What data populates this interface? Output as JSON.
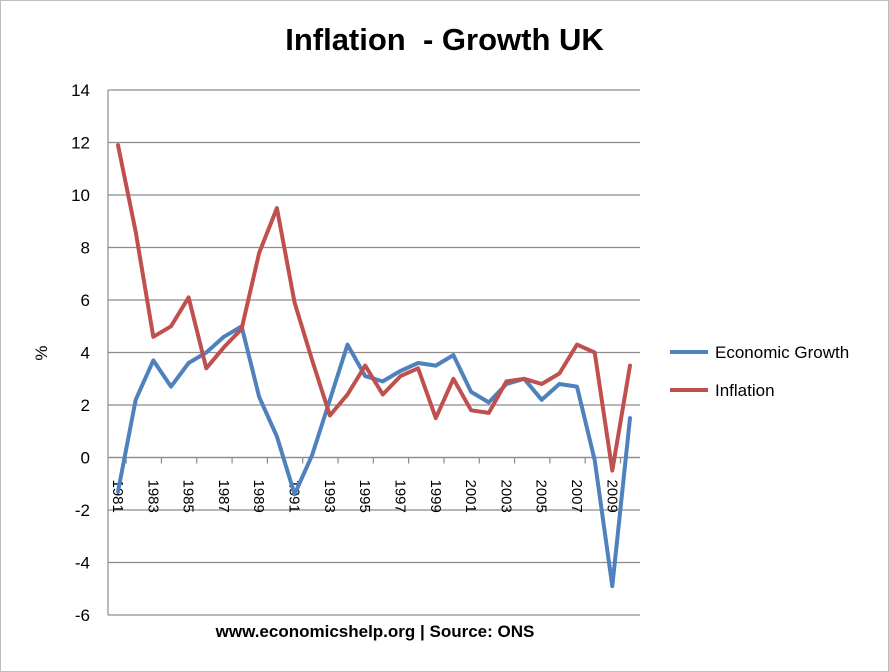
{
  "chart_data": {
    "type": "line",
    "title": "Inflation  - Growth UK",
    "source_note": "www.economicshelp.org | Source: ONS",
    "xlabel": "",
    "ylabel": "%",
    "ylim": [
      -6,
      14
    ],
    "yticks": [
      14,
      12,
      10,
      8,
      6,
      4,
      2,
      0,
      -2,
      -4,
      -6
    ],
    "x": [
      1981,
      1982,
      1983,
      1984,
      1985,
      1986,
      1987,
      1988,
      1989,
      1990,
      1991,
      1992,
      1993,
      1994,
      1995,
      1996,
      1997,
      1998,
      1999,
      2000,
      2001,
      2002,
      2003,
      2004,
      2005,
      2006,
      2007,
      2008,
      2009,
      2010
    ],
    "xtick_labels": [
      "1981",
      "1983",
      "1985",
      "1987",
      "1989",
      "1991",
      "1993",
      "1995",
      "1997",
      "1999",
      "2001",
      "2003",
      "2005",
      "2007",
      "2009"
    ],
    "grid": true,
    "legend_position": "right",
    "series": [
      {
        "name": "Economic Growth",
        "color": "#4f81bd",
        "values": [
          -1.3,
          2.2,
          3.7,
          2.7,
          3.6,
          4.0,
          4.6,
          5.0,
          2.3,
          0.8,
          -1.4,
          0.1,
          2.2,
          4.3,
          3.1,
          2.9,
          3.3,
          3.6,
          3.5,
          3.9,
          2.5,
          2.1,
          2.8,
          3.0,
          2.2,
          2.8,
          2.7,
          -0.1,
          -4.9,
          1.5
        ]
      },
      {
        "name": "Inflation",
        "color": "#c0504d",
        "values": [
          11.9,
          8.6,
          4.6,
          5.0,
          6.1,
          3.4,
          4.2,
          4.9,
          7.8,
          9.5,
          5.9,
          3.7,
          1.6,
          2.4,
          3.5,
          2.4,
          3.1,
          3.4,
          1.5,
          3.0,
          1.8,
          1.7,
          2.9,
          3.0,
          2.8,
          3.2,
          4.3,
          4.0,
          -0.5,
          3.5
        ]
      }
    ]
  }
}
